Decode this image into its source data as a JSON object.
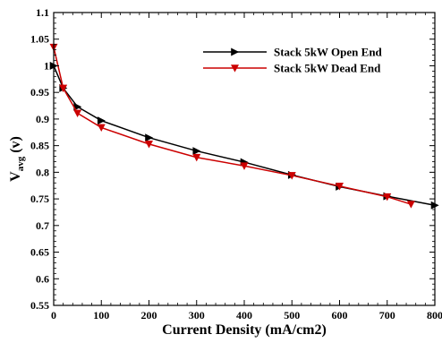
{
  "chart_data": {
    "type": "line",
    "title": "",
    "xlabel": "Current Density (mA/cm2)",
    "ylabel": {
      "main": "V",
      "sub": "avg",
      "rest": " (v)"
    },
    "xlim": [
      0,
      800
    ],
    "ylim": [
      0.55,
      1.1
    ],
    "x_ticks": [
      0,
      100,
      200,
      300,
      400,
      500,
      600,
      700,
      800
    ],
    "y_ticks": [
      0.55,
      0.6,
      0.65,
      0.7,
      0.75,
      0.8,
      0.85,
      0.9,
      0.95,
      1.0,
      1.05,
      1.1
    ],
    "y_tick_labels": [
      "0.55",
      "0.6",
      "0.65",
      "0.7",
      "0.75",
      "0.8",
      "0.85",
      "0.9",
      "0.95",
      "1",
      "1.05",
      "1.1"
    ],
    "grid": false,
    "legend_position": "top-right",
    "series": [
      {
        "name": "Stack 5kW Open End",
        "color": "#000000",
        "marker": "triangle-right",
        "x": [
          0,
          20,
          50,
          100,
          200,
          300,
          400,
          500,
          600,
          700,
          800
        ],
        "y": [
          1.0,
          0.958,
          0.923,
          0.897,
          0.865,
          0.84,
          0.819,
          0.795,
          0.773,
          0.755,
          0.738
        ]
      },
      {
        "name": "Stack 5kW Dead End",
        "color": "#cc0000",
        "marker": "triangle-down",
        "x": [
          0,
          20,
          50,
          100,
          200,
          300,
          400,
          500,
          600,
          700,
          750
        ],
        "y": [
          1.035,
          0.958,
          0.911,
          0.884,
          0.853,
          0.828,
          0.812,
          0.794,
          0.774,
          0.754,
          0.74
        ]
      }
    ]
  }
}
